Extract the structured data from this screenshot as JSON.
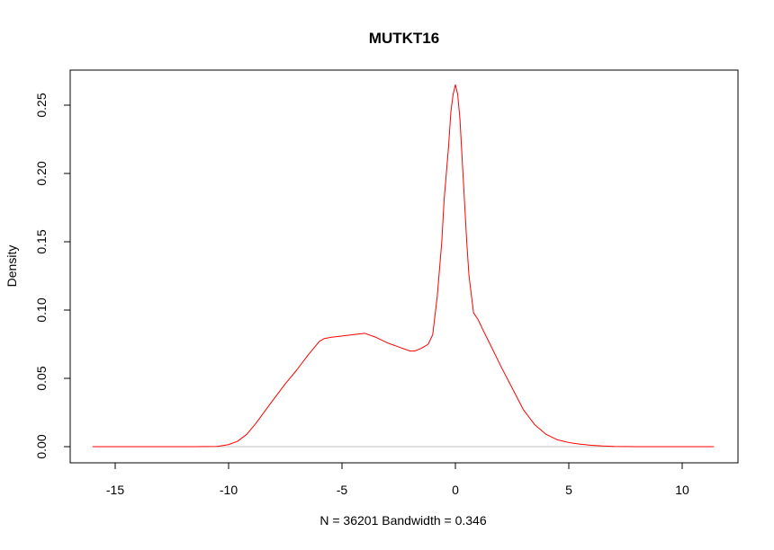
{
  "chart_data": {
    "type": "line",
    "title": "MUTKT16",
    "xlabel": "N = 36201   Bandwidth = 0.346",
    "ylabel": "Density",
    "xlim": [
      -16,
      11.4
    ],
    "ylim": [
      0,
      0.265
    ],
    "x_ticks": [
      -15,
      -10,
      -5,
      0,
      5,
      10
    ],
    "x_tick_labels": [
      "-15",
      "-10",
      "-5",
      "0",
      "5",
      "10"
    ],
    "y_ticks": [
      0.0,
      0.05,
      0.1,
      0.15,
      0.2,
      0.25
    ],
    "y_tick_labels": [
      "0.00",
      "0.05",
      "0.10",
      "0.15",
      "0.20",
      "0.25"
    ],
    "grid": false,
    "legend": "none",
    "baseline": 0,
    "colors": {
      "line": "#ff0000",
      "baseline": "#c0c0c0",
      "axes": "#000000"
    },
    "series": [
      {
        "x": [
          -16,
          -11.5,
          -10.5,
          -10.0,
          -9.6,
          -9.2,
          -8.8,
          -8.4,
          -8.0,
          -7.5,
          -7.0,
          -6.5,
          -6.0,
          -5.8,
          -5.5,
          -5.0,
          -4.5,
          -4.0,
          -3.5,
          -3.0,
          -2.5,
          -2.0,
          -1.8,
          -1.5,
          -1.2,
          -1.0,
          -0.8,
          -0.6,
          -0.5,
          -0.3,
          -0.2,
          -0.1,
          0.0,
          0.1,
          0.2,
          0.3,
          0.4,
          0.5,
          0.6,
          0.8,
          1.0,
          1.2,
          1.5,
          2.0,
          2.5,
          3.0,
          3.5,
          4.0,
          4.5,
          5.0,
          5.5,
          6.0,
          6.5,
          7.0,
          7.5,
          8.0,
          11.4
        ],
        "y": [
          0.0,
          0.0,
          0.0002,
          0.0015,
          0.004,
          0.009,
          0.017,
          0.026,
          0.035,
          0.046,
          0.056,
          0.067,
          0.077,
          0.079,
          0.08,
          0.081,
          0.082,
          0.083,
          0.08,
          0.076,
          0.073,
          0.07,
          0.07,
          0.072,
          0.075,
          0.082,
          0.11,
          0.15,
          0.18,
          0.22,
          0.245,
          0.258,
          0.265,
          0.258,
          0.24,
          0.21,
          0.18,
          0.15,
          0.125,
          0.098,
          0.093,
          0.086,
          0.076,
          0.059,
          0.043,
          0.027,
          0.016,
          0.009,
          0.005,
          0.003,
          0.0018,
          0.001,
          0.0005,
          0.0002,
          0.0001,
          0.0,
          0.0
        ]
      }
    ]
  }
}
